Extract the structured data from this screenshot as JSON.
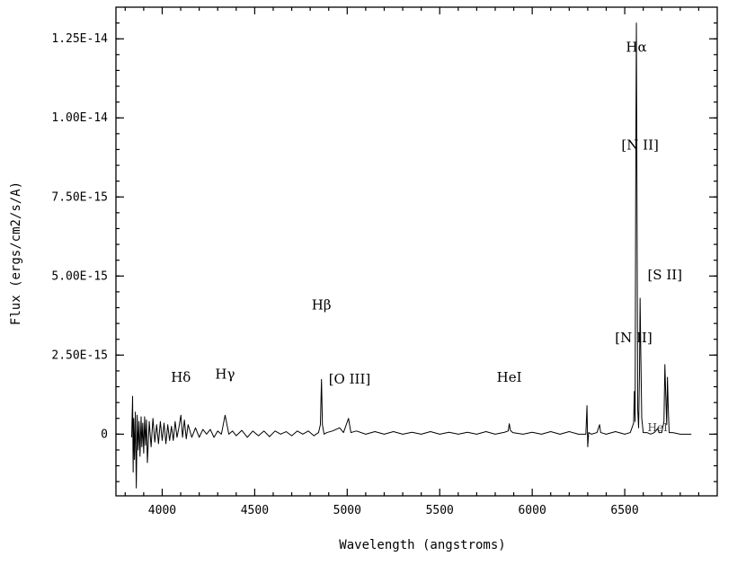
{
  "chart_data": {
    "type": "line",
    "title": "",
    "xlabel": "Wavelength (angstroms)",
    "ylabel": "Flux (ergs/cm2/s/A)",
    "xlim": [
      3750,
      7000
    ],
    "ylim": [
      -1.95e-15,
      1.35e-14
    ],
    "x_ticks": [
      4000,
      4500,
      5000,
      5500,
      6000,
      6500
    ],
    "x_tick_labels": [
      "4000",
      "4500",
      "5000",
      "5500",
      "6000",
      "6500"
    ],
    "y_ticks": [
      0,
      2.5e-15,
      5e-15,
      7.5e-15,
      1e-14,
      1.25e-14
    ],
    "y_tick_labels": [
      "0",
      "2.50E-15",
      "5.00E-15",
      "7.50E-15",
      "1.00E-14",
      "1.25E-14"
    ],
    "series": [
      {
        "x": [
          3835,
          3840,
          3843,
          3846,
          3850,
          3855,
          3860,
          3865,
          3870,
          3875,
          3880,
          3886,
          3890,
          3895,
          3900,
          3905,
          3910,
          3915,
          3920,
          3930,
          3940,
          3950,
          3960,
          3970,
          3980,
          3990,
          4000,
          4010,
          4020,
          4030,
          4040,
          4050,
          4060,
          4070,
          4080,
          4090,
          4101,
          4110,
          4120,
          4130,
          4140,
          4160,
          4180,
          4200,
          4220,
          4240,
          4260,
          4280,
          4300,
          4320,
          4340,
          4360,
          4380,
          4400,
          4430,
          4460,
          4490,
          4520,
          4550,
          4580,
          4610,
          4640,
          4670,
          4700,
          4730,
          4760,
          4790,
          4820,
          4845,
          4855,
          4861,
          4866,
          4875,
          4890,
          4920,
          4959,
          4980,
          5007,
          5020,
          5050,
          5100,
          5150,
          5200,
          5250,
          5300,
          5350,
          5400,
          5450,
          5500,
          5550,
          5600,
          5650,
          5700,
          5750,
          5800,
          5850,
          5870,
          5876,
          5882,
          5895,
          5950,
          6000,
          6050,
          6100,
          6150,
          6200,
          6250,
          6290,
          6296,
          6300,
          6305,
          6320,
          6350,
          6364,
          6370,
          6400,
          6450,
          6500,
          6530,
          6548,
          6552,
          6556,
          6560,
          6563,
          6566,
          6570,
          6575,
          6580,
          6583,
          6587,
          6592,
          6600,
          6620,
          6640,
          6660,
          6678,
          6685,
          6700,
          6712,
          6717,
          6722,
          6727,
          6731,
          6735,
          6740,
          6760,
          6800,
          6860
        ],
        "y": [
          -1e-16,
          1.2e-15,
          -1.2e-15,
          5e-16,
          -8e-16,
          7e-16,
          -1.7e-15,
          6e-16,
          -5e-16,
          4e-16,
          -7e-16,
          5.5e-16,
          -4e-16,
          3.5e-16,
          -6e-16,
          5.5e-16,
          -3.5e-16,
          4.5e-16,
          -9e-16,
          4e-16,
          -4e-16,
          5e-16,
          -2.5e-16,
          3e-16,
          -3e-16,
          4e-16,
          -2e-16,
          3.5e-16,
          -3e-16,
          3e-16,
          -2e-16,
          2.5e-16,
          -2e-16,
          4e-16,
          -1e-16,
          2e-16,
          6e-16,
          -1e-16,
          4.5e-16,
          -1.5e-16,
          3e-16,
          -1e-16,
          2e-16,
          -1e-16,
          1.5e-16,
          0.0,
          1.5e-16,
          -1e-16,
          1e-16,
          0.0,
          6e-16,
          0.0,
          1e-16,
          -5e-17,
          1.2e-16,
          -1e-16,
          1e-16,
          -5e-17,
          1e-16,
          -8e-17,
          1e-16,
          0.0,
          8e-17,
          -5e-17,
          1e-16,
          0.0,
          1e-16,
          -5e-17,
          5e-17,
          3e-16,
          1.73e-15,
          3e-16,
          0.0,
          5e-17,
          1e-16,
          2e-16,
          5e-17,
          5e-16,
          5e-17,
          1e-16,
          0.0,
          8e-17,
          0.0,
          8e-17,
          0.0,
          6e-17,
          0.0,
          8e-17,
          0.0,
          6e-17,
          0.0,
          6e-17,
          0.0,
          8e-17,
          0.0,
          6e-17,
          1e-16,
          3.3e-16,
          1.2e-16,
          5e-17,
          0.0,
          6e-17,
          0.0,
          8e-17,
          0.0,
          8e-17,
          0.0,
          0.0,
          9e-16,
          -4e-16,
          5e-17,
          0.0,
          5e-17,
          3e-16,
          5e-17,
          0.0,
          8e-17,
          0.0,
          5e-17,
          3.5e-16,
          1.35e-15,
          4e-16,
          9e-15,
          1.3e-14,
          8e-15,
          8e-16,
          2e-16,
          2e-15,
          4.3e-15,
          2.5e-15,
          5e-16,
          5e-17,
          5e-17,
          0.0,
          5e-17,
          1.8e-16,
          5e-17,
          5e-17,
          4e-16,
          2.2e-15,
          1.2e-15,
          3e-16,
          1.8e-15,
          9e-16,
          5e-17,
          5e-17,
          0.0,
          0.0
        ]
      }
    ],
    "annotations": [
      {
        "text": "Hδ",
        "x": 4101,
        "y": 1.65e-15
      },
      {
        "text": "Hγ",
        "x": 4340,
        "y": 1.75e-15
      },
      {
        "text": "Hβ",
        "x": 4861,
        "y": 3.95e-15
      },
      {
        "text": "[O III]",
        "x": 5013,
        "y": 1.6e-15
      },
      {
        "text": "HeI",
        "x": 5876,
        "y": 1.65e-15
      },
      {
        "text": "[N II]",
        "x": 6548,
        "y": 2.9e-15
      },
      {
        "text": "Hα",
        "x": 6563,
        "y": 1.21e-14
      },
      {
        "text": "HeI",
        "x": 6678,
        "y": 9e-17
      },
      {
        "text": "[N II]",
        "x": 6583,
        "y": 9e-15
      },
      {
        "text": "[S II]",
        "x": 6717,
        "y": 4.9e-15
      }
    ],
    "grid": false
  }
}
